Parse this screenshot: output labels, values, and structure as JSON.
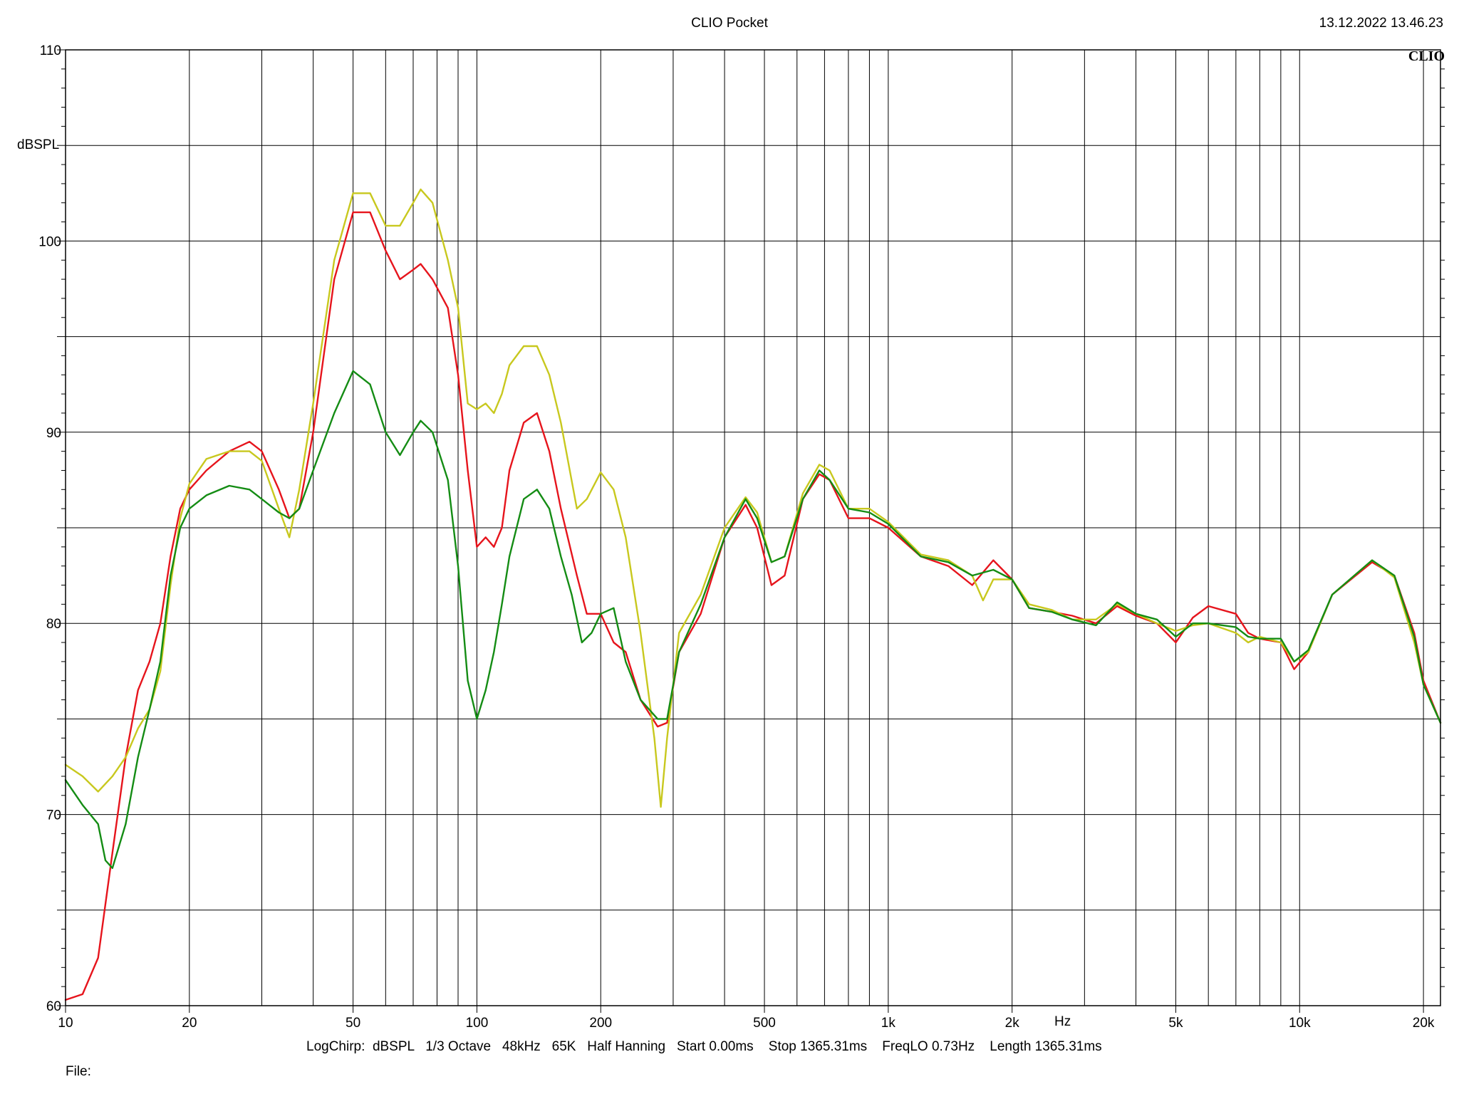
{
  "window": {
    "title": "CLIO Pocket",
    "timestamp": "13.12.2022 13.46.23",
    "brand": "CLIO"
  },
  "footer": {
    "params": "LogChirp:  dBSPL   1/3 Octave   48kHz   65K   Half Hanning   Start 0.00ms    Stop 1365.31ms    FreqLO 0.73Hz    Length 1365.31ms",
    "file_label": "File:"
  },
  "chart_data": {
    "type": "line",
    "title": "",
    "xlabel": "Hz",
    "ylabel": "dBSPL",
    "xscale": "log",
    "xlim": [
      10,
      22000
    ],
    "ylim": [
      60,
      110
    ],
    "grid": true,
    "x_ticks": [
      {
        "value": 10,
        "label": "10"
      },
      {
        "value": 20,
        "label": "20"
      },
      {
        "value": 50,
        "label": "50"
      },
      {
        "value": 100,
        "label": "100"
      },
      {
        "value": 200,
        "label": "200"
      },
      {
        "value": 500,
        "label": "500"
      },
      {
        "value": 1000,
        "label": "1k"
      },
      {
        "value": 2000,
        "label": "2k"
      },
      {
        "value": 5000,
        "label": "5k"
      },
      {
        "value": 10000,
        "label": "10k"
      },
      {
        "value": 20000,
        "label": "20k"
      }
    ],
    "y_ticks": [
      {
        "value": 60,
        "label": "60"
      },
      {
        "value": 70,
        "label": "70"
      },
      {
        "value": 80,
        "label": "80"
      },
      {
        "value": 90,
        "label": "90"
      },
      {
        "value": 100,
        "label": "100"
      },
      {
        "value": 110,
        "label": "110"
      }
    ],
    "colors": {
      "grid": "#000000",
      "frame": "#000000"
    },
    "series": [
      {
        "color": "#e6141c",
        "points": [
          [
            10,
            60.3
          ],
          [
            11,
            60.6
          ],
          [
            12,
            62.5
          ],
          [
            13,
            68.0
          ],
          [
            14,
            73.0
          ],
          [
            15,
            76.5
          ],
          [
            16,
            78.0
          ],
          [
            17,
            80.0
          ],
          [
            18,
            83.5
          ],
          [
            19,
            86.0
          ],
          [
            20,
            87.0
          ],
          [
            22,
            88.0
          ],
          [
            25,
            89.0
          ],
          [
            28,
            89.5
          ],
          [
            30,
            89.0
          ],
          [
            33,
            87.0
          ],
          [
            35,
            85.5
          ],
          [
            37,
            86.0
          ],
          [
            40,
            90.0
          ],
          [
            45,
            98.0
          ],
          [
            50,
            101.5
          ],
          [
            55,
            101.5
          ],
          [
            60,
            99.5
          ],
          [
            65,
            98.0
          ],
          [
            70,
            98.5
          ],
          [
            73,
            98.8
          ],
          [
            78,
            98.0
          ],
          [
            85,
            96.5
          ],
          [
            90,
            93.0
          ],
          [
            95,
            88.0
          ],
          [
            100,
            84.0
          ],
          [
            105,
            84.5
          ],
          [
            110,
            84.0
          ],
          [
            115,
            85.0
          ],
          [
            120,
            88.0
          ],
          [
            130,
            90.5
          ],
          [
            140,
            91.0
          ],
          [
            150,
            89.0
          ],
          [
            160,
            86.0
          ],
          [
            175,
            82.5
          ],
          [
            185,
            80.5
          ],
          [
            200,
            80.5
          ],
          [
            215,
            79.0
          ],
          [
            230,
            78.5
          ],
          [
            250,
            76.0
          ],
          [
            275,
            74.6
          ],
          [
            290,
            74.8
          ],
          [
            310,
            78.5
          ],
          [
            350,
            80.5
          ],
          [
            400,
            84.5
          ],
          [
            450,
            86.2
          ],
          [
            480,
            85.0
          ],
          [
            520,
            82.0
          ],
          [
            560,
            82.5
          ],
          [
            620,
            86.5
          ],
          [
            680,
            87.8
          ],
          [
            720,
            87.5
          ],
          [
            800,
            85.5
          ],
          [
            900,
            85.5
          ],
          [
            1000,
            85.0
          ],
          [
            1200,
            83.5
          ],
          [
            1400,
            83.0
          ],
          [
            1600,
            82.0
          ],
          [
            1800,
            83.3
          ],
          [
            2000,
            82.3
          ],
          [
            2200,
            80.8
          ],
          [
            2500,
            80.6
          ],
          [
            2800,
            80.4
          ],
          [
            3200,
            80.0
          ],
          [
            3600,
            80.9
          ],
          [
            4000,
            80.4
          ],
          [
            4500,
            80.0
          ],
          [
            5000,
            79.0
          ],
          [
            5500,
            80.3
          ],
          [
            6000,
            80.9
          ],
          [
            7000,
            80.5
          ],
          [
            7500,
            79.5
          ],
          [
            8000,
            79.2
          ],
          [
            9000,
            79.0
          ],
          [
            9700,
            77.6
          ],
          [
            10500,
            78.5
          ],
          [
            12000,
            81.5
          ],
          [
            15000,
            83.2
          ],
          [
            17000,
            82.5
          ],
          [
            19000,
            79.5
          ],
          [
            20000,
            77.0
          ],
          [
            22000,
            74.8
          ]
        ]
      },
      {
        "color": "#c8c81e",
        "points": [
          [
            10,
            72.6
          ],
          [
            11,
            72.0
          ],
          [
            12,
            71.2
          ],
          [
            13,
            72.0
          ],
          [
            14,
            73.0
          ],
          [
            15,
            74.5
          ],
          [
            16,
            75.5
          ],
          [
            17,
            77.5
          ],
          [
            18,
            82.0
          ],
          [
            19,
            85.5
          ],
          [
            20,
            87.3
          ],
          [
            22,
            88.6
          ],
          [
            25,
            89.0
          ],
          [
            28,
            89.0
          ],
          [
            30,
            88.5
          ],
          [
            33,
            86.0
          ],
          [
            35,
            84.5
          ],
          [
            37,
            87.0
          ],
          [
            40,
            91.5
          ],
          [
            45,
            99.0
          ],
          [
            50,
            102.5
          ],
          [
            55,
            102.5
          ],
          [
            60,
            100.8
          ],
          [
            65,
            100.8
          ],
          [
            70,
            102.0
          ],
          [
            73,
            102.7
          ],
          [
            78,
            102.0
          ],
          [
            85,
            99.0
          ],
          [
            90,
            96.5
          ],
          [
            95,
            91.5
          ],
          [
            100,
            91.2
          ],
          [
            105,
            91.5
          ],
          [
            110,
            91.0
          ],
          [
            115,
            92.0
          ],
          [
            120,
            93.5
          ],
          [
            130,
            94.5
          ],
          [
            140,
            94.5
          ],
          [
            150,
            93.0
          ],
          [
            160,
            90.5
          ],
          [
            175,
            86.0
          ],
          [
            185,
            86.5
          ],
          [
            200,
            87.9
          ],
          [
            215,
            87.0
          ],
          [
            230,
            84.5
          ],
          [
            250,
            79.5
          ],
          [
            270,
            74.0
          ],
          [
            280,
            70.4
          ],
          [
            290,
            74.0
          ],
          [
            310,
            79.5
          ],
          [
            350,
            81.5
          ],
          [
            400,
            85.0
          ],
          [
            450,
            86.6
          ],
          [
            480,
            85.8
          ],
          [
            520,
            83.2
          ],
          [
            560,
            83.5
          ],
          [
            620,
            86.8
          ],
          [
            680,
            88.3
          ],
          [
            720,
            88.0
          ],
          [
            800,
            86.0
          ],
          [
            900,
            86.0
          ],
          [
            1000,
            85.3
          ],
          [
            1200,
            83.6
          ],
          [
            1400,
            83.3
          ],
          [
            1600,
            82.5
          ],
          [
            1700,
            81.2
          ],
          [
            1800,
            82.3
          ],
          [
            2000,
            82.3
          ],
          [
            2200,
            81.0
          ],
          [
            2500,
            80.7
          ],
          [
            2800,
            80.2
          ],
          [
            3200,
            80.2
          ],
          [
            3600,
            81.0
          ],
          [
            4000,
            80.5
          ],
          [
            4500,
            80.0
          ],
          [
            5000,
            79.6
          ],
          [
            5500,
            79.9
          ],
          [
            6000,
            80.0
          ],
          [
            7000,
            79.5
          ],
          [
            7500,
            79.0
          ],
          [
            8000,
            79.3
          ],
          [
            9000,
            79.0
          ],
          [
            9700,
            78.0
          ],
          [
            10500,
            78.5
          ],
          [
            12000,
            81.5
          ],
          [
            15000,
            83.3
          ],
          [
            17000,
            82.4
          ],
          [
            19000,
            79.0
          ],
          [
            20000,
            76.8
          ],
          [
            22000,
            74.8
          ]
        ]
      },
      {
        "color": "#148c14",
        "points": [
          [
            10,
            71.8
          ],
          [
            11,
            70.5
          ],
          [
            12,
            69.5
          ],
          [
            12.5,
            67.6
          ],
          [
            13,
            67.2
          ],
          [
            14,
            69.5
          ],
          [
            15,
            73.0
          ],
          [
            16,
            75.5
          ],
          [
            17,
            78.0
          ],
          [
            18,
            82.5
          ],
          [
            19,
            85.0
          ],
          [
            20,
            86.0
          ],
          [
            22,
            86.7
          ],
          [
            25,
            87.2
          ],
          [
            28,
            87.0
          ],
          [
            30,
            86.5
          ],
          [
            33,
            85.8
          ],
          [
            35,
            85.5
          ],
          [
            37,
            86.0
          ],
          [
            40,
            88.0
          ],
          [
            45,
            91.0
          ],
          [
            50,
            93.2
          ],
          [
            55,
            92.5
          ],
          [
            60,
            90.0
          ],
          [
            65,
            88.8
          ],
          [
            70,
            90.0
          ],
          [
            73,
            90.6
          ],
          [
            78,
            90.0
          ],
          [
            85,
            87.5
          ],
          [
            90,
            83.0
          ],
          [
            95,
            77.0
          ],
          [
            100,
            75.0
          ],
          [
            105,
            76.5
          ],
          [
            110,
            78.5
          ],
          [
            115,
            81.0
          ],
          [
            120,
            83.5
          ],
          [
            130,
            86.5
          ],
          [
            140,
            87.0
          ],
          [
            150,
            86.0
          ],
          [
            160,
            83.5
          ],
          [
            170,
            81.5
          ],
          [
            180,
            79.0
          ],
          [
            190,
            79.5
          ],
          [
            200,
            80.5
          ],
          [
            215,
            80.8
          ],
          [
            230,
            78.0
          ],
          [
            250,
            76.0
          ],
          [
            275,
            75.0
          ],
          [
            290,
            75.0
          ],
          [
            310,
            78.5
          ],
          [
            350,
            81.0
          ],
          [
            400,
            84.5
          ],
          [
            450,
            86.5
          ],
          [
            480,
            85.5
          ],
          [
            520,
            83.2
          ],
          [
            560,
            83.5
          ],
          [
            620,
            86.5
          ],
          [
            680,
            88.0
          ],
          [
            720,
            87.5
          ],
          [
            800,
            86.0
          ],
          [
            900,
            85.8
          ],
          [
            1000,
            85.2
          ],
          [
            1200,
            83.5
          ],
          [
            1400,
            83.2
          ],
          [
            1600,
            82.5
          ],
          [
            1800,
            82.8
          ],
          [
            2000,
            82.3
          ],
          [
            2200,
            80.8
          ],
          [
            2500,
            80.6
          ],
          [
            2800,
            80.2
          ],
          [
            3200,
            79.9
          ],
          [
            3600,
            81.1
          ],
          [
            4000,
            80.5
          ],
          [
            4500,
            80.2
          ],
          [
            5000,
            79.3
          ],
          [
            5500,
            80.0
          ],
          [
            6000,
            80.0
          ],
          [
            7000,
            79.8
          ],
          [
            7500,
            79.3
          ],
          [
            8000,
            79.2
          ],
          [
            9000,
            79.2
          ],
          [
            9700,
            78.0
          ],
          [
            10500,
            78.6
          ],
          [
            12000,
            81.5
          ],
          [
            15000,
            83.3
          ],
          [
            17000,
            82.5
          ],
          [
            19000,
            79.3
          ],
          [
            20000,
            76.8
          ],
          [
            22000,
            74.8
          ]
        ]
      }
    ]
  }
}
